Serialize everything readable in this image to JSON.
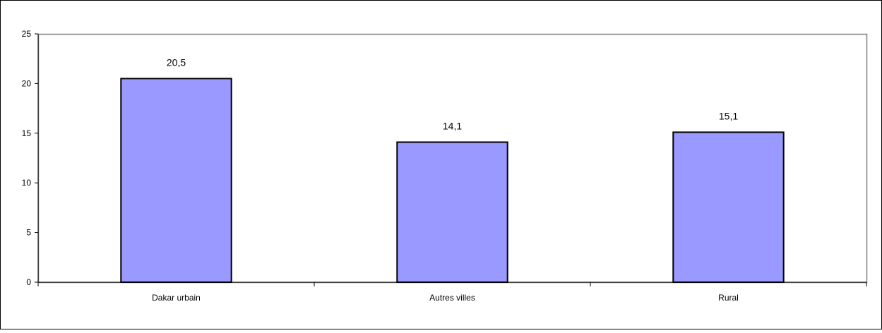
{
  "chart_data": {
    "type": "bar",
    "categories": [
      "Dakar urbain",
      "Autres villes",
      "Rural"
    ],
    "values": [
      20.5,
      14.1,
      15.1
    ],
    "value_labels": [
      "20,5",
      "14,1",
      "15,1"
    ],
    "title": "",
    "xlabel": "",
    "ylabel": "",
    "ylim": [
      0,
      25
    ],
    "yticks": [
      0,
      5,
      10,
      15,
      20,
      25
    ],
    "grid": false,
    "legend": "none",
    "bar_color": "#9999ff",
    "bar_stroke": "#000000"
  }
}
